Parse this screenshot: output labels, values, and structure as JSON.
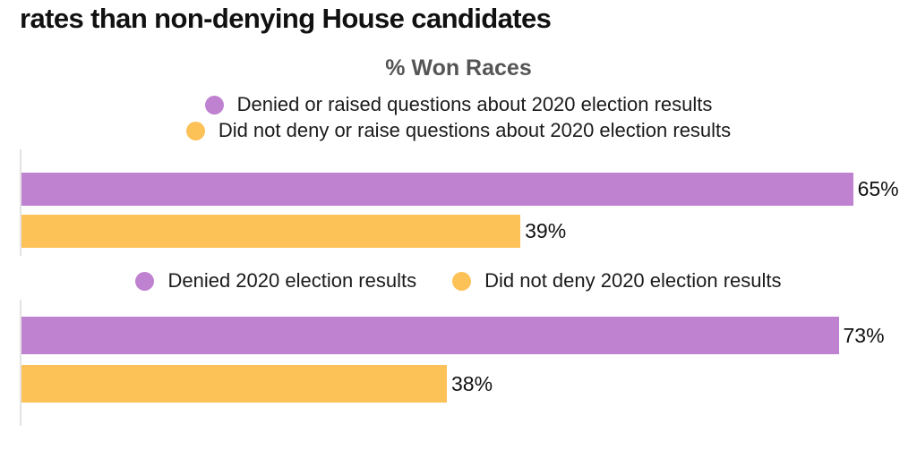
{
  "header": {
    "title": "rates than non-denying House candidates",
    "chart_title": "% Won Races"
  },
  "colors": {
    "denier_purple": "#bf82d1",
    "non_denier_orange": "#fcc157",
    "axis_line": "#e3e3e3",
    "headline_text": "#111111",
    "chart_title_text": "#555555",
    "value_label_text": "#111111"
  },
  "chart_data": [
    {
      "type": "bar",
      "orientation": "horizontal",
      "title": "% Won Races",
      "legend_position": "top-center",
      "grid": false,
      "xlim": [
        0,
        70
      ],
      "legend": [
        {
          "label": "Denied or raised questions about 2020 election results",
          "color": "#bf82d1"
        },
        {
          "label": "Did not deny or raise questions about 2020 election results",
          "color": "#fcc157"
        }
      ],
      "series": [
        {
          "name": "Denied or raised questions about 2020 election results",
          "value": 65,
          "label": "65%",
          "color": "#bf82d1"
        },
        {
          "name": "Did not deny or raise questions about 2020 election results",
          "value": 39,
          "label": "39%",
          "color": "#fcc157"
        }
      ]
    },
    {
      "type": "bar",
      "orientation": "horizontal",
      "legend_position": "top-center",
      "grid": false,
      "xlim": [
        0,
        80
      ],
      "legend": [
        {
          "label": "Denied 2020 election results",
          "color": "#bf82d1"
        },
        {
          "label": "Did not deny 2020 election results",
          "color": "#fcc157"
        }
      ],
      "series": [
        {
          "name": "Denied 2020 election results",
          "value": 73,
          "label": "73%",
          "color": "#bf82d1"
        },
        {
          "name": "Did not deny 2020 election results",
          "value": 38,
          "label": "38%",
          "color": "#fcc157"
        }
      ]
    }
  ]
}
